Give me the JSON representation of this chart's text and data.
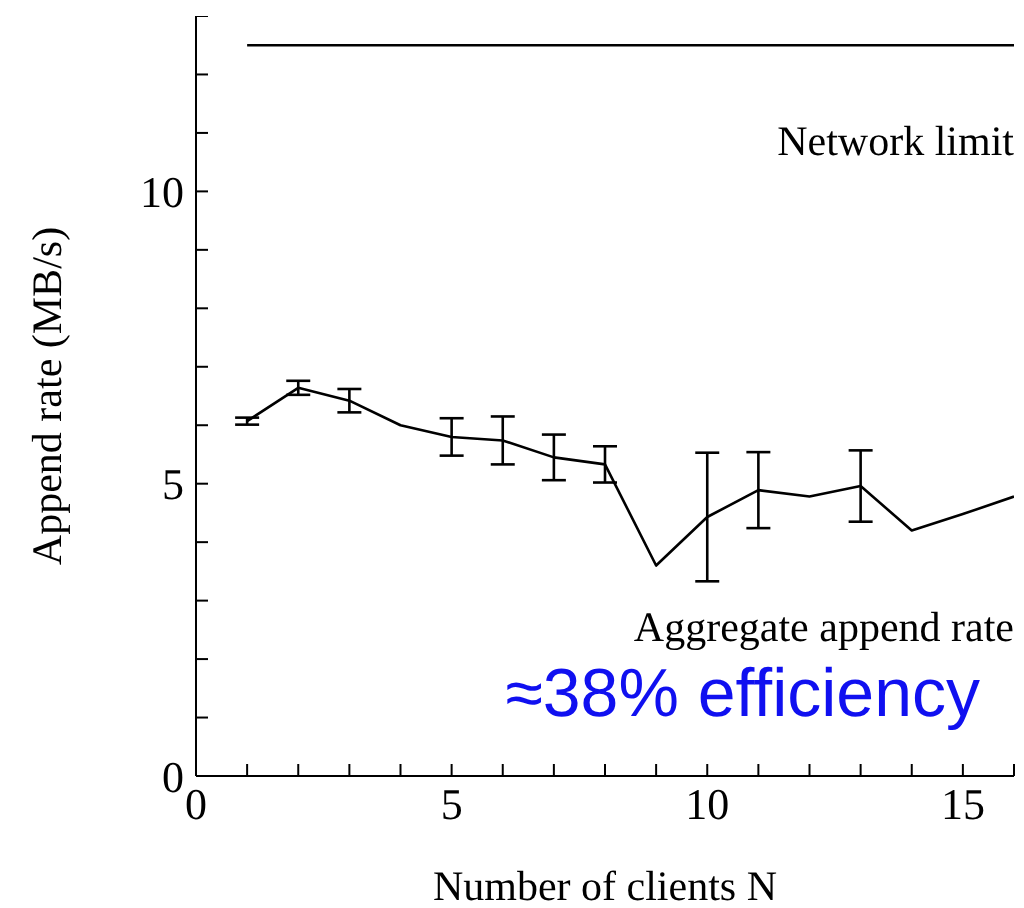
{
  "chart_data": {
    "type": "line",
    "xlabel": "Number of clients N",
    "ylabel": "Append rate (MB/s)",
    "xlim": [
      0,
      16
    ],
    "xticks": [
      0,
      {
        "value": 1,
        "label": null
      },
      {
        "value": 2,
        "label": null
      },
      {
        "value": 3,
        "label": null
      },
      {
        "value": 4,
        "label": null
      },
      5,
      {
        "value": 6,
        "label": null
      },
      {
        "value": 7,
        "label": null
      },
      {
        "value": 8,
        "label": null
      },
      {
        "value": 9,
        "label": null
      },
      10,
      {
        "value": 11,
        "label": null
      },
      {
        "value": 12,
        "label": null
      },
      {
        "value": 13,
        "label": null
      },
      {
        "value": 14,
        "label": null
      },
      15,
      {
        "value": 16,
        "label": null
      }
    ],
    "ylim": [
      0,
      13
    ],
    "yticks": [
      0,
      {
        "value": 1,
        "label": null
      },
      {
        "value": 2,
        "label": null
      },
      {
        "value": 3,
        "label": null
      },
      {
        "value": 4,
        "label": null
      },
      5,
      {
        "value": 6,
        "label": null
      },
      {
        "value": 7,
        "label": null
      },
      {
        "value": 8,
        "label": null
      },
      {
        "value": 9,
        "label": null
      },
      10,
      {
        "value": 11,
        "label": null
      },
      {
        "value": 12,
        "label": null
      },
      {
        "value": 13,
        "label": null
      }
    ],
    "series": [
      {
        "name": "Network limit",
        "color": "#000000",
        "x": [
          1,
          16
        ],
        "values": [
          12.5,
          12.5
        ]
      },
      {
        "name": "Aggregate append rate",
        "color": "#000000",
        "x": [
          1,
          2,
          3,
          4,
          5,
          6,
          7,
          8,
          9,
          10,
          11,
          12,
          13,
          14,
          15,
          16
        ],
        "values": [
          6.07,
          6.64,
          6.42,
          6.0,
          5.8,
          5.74,
          5.45,
          5.33,
          3.6,
          4.43,
          4.89,
          4.78,
          4.96,
          4.2,
          4.48,
          4.78
        ],
        "errors": [
          0.06,
          0.12,
          0.2,
          null,
          0.32,
          0.41,
          0.39,
          0.31,
          null,
          1.1,
          0.65,
          null,
          0.61,
          null,
          null,
          null
        ]
      }
    ],
    "annotations": [
      "≈38% efficiency"
    ],
    "marker": "none",
    "line_style": "solid"
  }
}
